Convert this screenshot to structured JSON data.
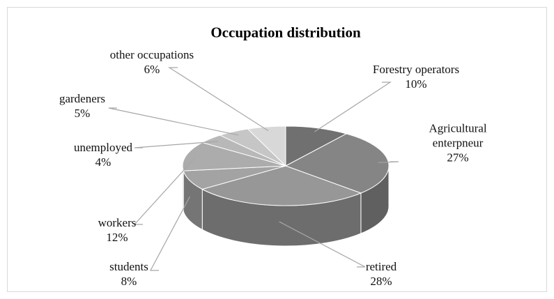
{
  "chart_data": {
    "type": "pie",
    "title": "Occupation distribution",
    "categories": [
      "Forestry operators",
      "Agricultural enterpneur",
      "retired",
      "students",
      "workers",
      "unemployed",
      "gardeners",
      "other occupations"
    ],
    "values": [
      10,
      27,
      28,
      8,
      12,
      4,
      5,
      6
    ],
    "value_labels": [
      "10%",
      "27%",
      "28%",
      "8%",
      "12%",
      "4%",
      "5%",
      "6%"
    ],
    "colors": [
      "#707070",
      "#858585",
      "#979797",
      "#a3a3a3",
      "#acacac",
      "#b8b8b8",
      "#c6c6c6",
      "#d8d8d8"
    ]
  }
}
